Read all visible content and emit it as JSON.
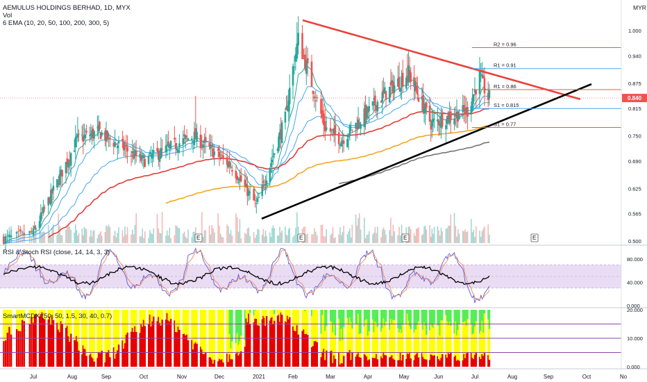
{
  "header": {
    "symbol": "AEMULUS HOLDINGS BERHAD, 1D, MYX",
    "vol_label": "Vol",
    "ema_label": "6 EMA (10, 20, 50, 100, 200, 300, 5)",
    "currency": "MYR"
  },
  "rsi": {
    "label": "RSI & Stoch RSI (close, 14, 14, 3, 3)"
  },
  "smart": {
    "label": "SmartMCDX (50, 50, 1.5, 30, 40, 0.7)"
  },
  "colors": {
    "up": "#26a69a",
    "down": "#ef5350",
    "resistance": "#e8423b",
    "support": "#000000",
    "ema_fast": "#26a69a",
    "ema_mid": "#42a5f5",
    "ema_red": "#e53935",
    "ema_orange": "#f5a623",
    "ema_gray": "#757575",
    "band": "#e9dcf3",
    "rsi": "#000000",
    "stoch_k": "#5b5bd6",
    "stoch_d": "#f0885a",
    "mcdx_red": "#e60000",
    "mcdx_yellow": "#ffff00",
    "mcdx_green": "#55ee55"
  },
  "chart_data": [
    {
      "type": "candlestick",
      "yticks": [
        "1.000",
        "0.940",
        "0.875",
        "0.815",
        "0.750",
        "0.690",
        "0.625",
        "0.565",
        "0.500"
      ],
      "ylim": [
        0.5,
        1.03
      ],
      "xticks": [
        "Jul",
        "Aug",
        "Sep",
        "Oct",
        "Nov",
        "Dec",
        "2021",
        "Feb",
        "Mar",
        "Apr",
        "May",
        "Jun",
        "Jul",
        "Aug",
        "Sep",
        "Oct",
        "No"
      ],
      "last_price": "0.840",
      "pivots": [
        {
          "label": "R2 = 0.96",
          "value": 0.96
        },
        {
          "label": "R1 = 0.91",
          "value": 0.91
        },
        {
          "label": "R1 = 0.86",
          "value": 0.86
        },
        {
          "label": "S1 = 0.815",
          "value": 0.815
        },
        {
          "label": "S1 = 0.77",
          "value": 0.77
        }
      ],
      "earnings_markers": [
        "E",
        "E",
        "E",
        "E",
        "E"
      ],
      "key_closes": [
        {
          "date": "2020-07-01",
          "close": 0.52
        },
        {
          "date": "2020-08-05",
          "close": 0.74
        },
        {
          "date": "2020-08-25",
          "close": 0.76
        },
        {
          "date": "2020-10-01",
          "close": 0.69
        },
        {
          "date": "2020-11-10",
          "close": 0.75
        },
        {
          "date": "2020-12-10",
          "close": 0.68
        },
        {
          "date": "2020-12-30",
          "close": 0.585
        },
        {
          "date": "2021-01-25",
          "close": 0.79
        },
        {
          "date": "2021-02-05",
          "close": 0.98
        },
        {
          "date": "2021-02-25",
          "close": 0.77
        },
        {
          "date": "2021-03-10",
          "close": 0.74
        },
        {
          "date": "2021-04-15",
          "close": 0.85
        },
        {
          "date": "2021-05-05",
          "close": 0.9
        },
        {
          "date": "2021-05-25",
          "close": 0.78
        },
        {
          "date": "2021-06-25",
          "close": 0.81
        },
        {
          "date": "2021-07-05",
          "close": 0.89
        },
        {
          "date": "2021-07-12",
          "close": 0.84
        }
      ]
    },
    {
      "type": "line",
      "yticks": [
        "80.000",
        "40.000",
        "0.000"
      ],
      "ylim": [
        0,
        100
      ],
      "band": [
        30,
        70
      ]
    },
    {
      "type": "area",
      "yticks": [
        "20.000",
        "10.000",
        "0.000"
      ],
      "ylim": [
        0,
        20
      ],
      "levels": [
        15,
        10,
        5
      ]
    }
  ]
}
